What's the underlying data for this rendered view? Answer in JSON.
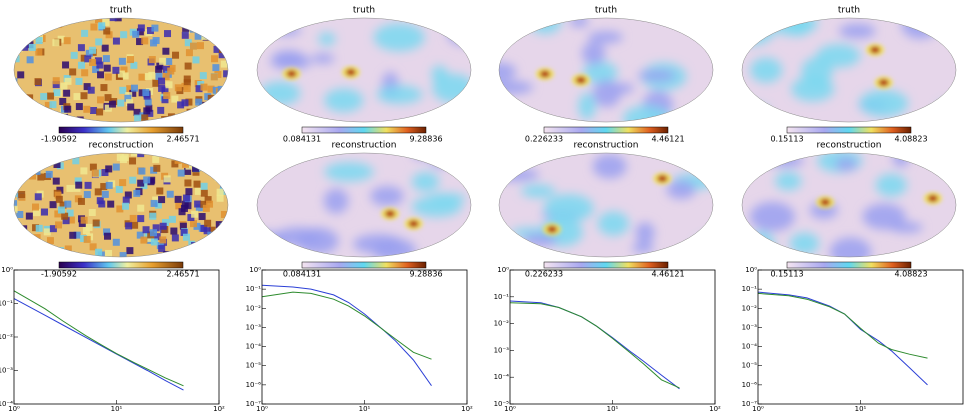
{
  "maps": [
    {
      "title": "truth",
      "colorbar": [
        -1.90592,
        2.46571
      ]
    },
    {
      "title": "truth",
      "colorbar": [
        0.084131,
        9.28836
      ]
    },
    {
      "title": "truth",
      "colorbar": [
        0.226233,
        4.46121
      ]
    },
    {
      "title": "truth",
      "colorbar": [
        0.15113,
        4.08823
      ]
    },
    {
      "title": "reconstruction",
      "colorbar": [
        -1.90592,
        2.46571
      ]
    },
    {
      "title": "reconstruction",
      "colorbar": [
        0.084131,
        9.28836
      ]
    },
    {
      "title": "reconstruction",
      "colorbar": [
        0.226233,
        4.46121
      ]
    },
    {
      "title": "reconstruction",
      "colorbar": [
        0.15113,
        4.08823
      ]
    }
  ],
  "chart_data": [
    {
      "type": "line",
      "log_x": true,
      "log_y": true,
      "x": [
        1,
        2,
        3,
        5,
        7,
        10,
        15,
        20,
        30,
        45
      ],
      "series": [
        {
          "color": "#2b3fd6",
          "values": [
            0.14,
            0.0446,
            0.0228,
            0.0098,
            0.0056,
            0.0031,
            0.0016,
            0.001,
            0.0005,
            0.00026
          ]
        },
        {
          "color": "#2e8b2e",
          "values": [
            0.24,
            0.07,
            0.03,
            0.011,
            0.006,
            0.0032,
            0.0017,
            0.0011,
            0.0006,
            0.00035
          ]
        }
      ],
      "xlim": [
        1,
        100
      ],
      "xticks": [
        {
          "value": 1,
          "label": "10⁰"
        },
        {
          "value": 10,
          "label": "10¹"
        },
        {
          "value": 100,
          "label": "10²"
        }
      ],
      "ylim": [
        0.0001,
        1
      ],
      "yticks": [
        {
          "value": 0.0001,
          "label": "10⁻⁴"
        },
        {
          "value": 0.001,
          "label": "10⁻³"
        },
        {
          "value": 0.01,
          "label": "10⁻²"
        },
        {
          "value": 0.1,
          "label": "10⁻¹"
        },
        {
          "value": 1,
          "label": "10⁰"
        }
      ]
    },
    {
      "type": "line",
      "log_x": true,
      "log_y": true,
      "x": [
        1,
        2,
        3,
        5,
        7,
        10,
        15,
        20,
        30,
        45
      ],
      "series": [
        {
          "color": "#2b3fd6",
          "values": [
            0.16,
            0.13,
            0.1,
            0.05,
            0.02,
            0.005,
            0.0008,
            0.0002,
            2e-05,
            9e-07
          ]
        },
        {
          "color": "#2e8b2e",
          "values": [
            0.04,
            0.07,
            0.06,
            0.03,
            0.013,
            0.004,
            0.0008,
            0.00025,
            5e-05,
            2.2e-05
          ]
        }
      ],
      "xlim": [
        1,
        100
      ],
      "xticks": [
        {
          "value": 1,
          "label": "10⁰"
        },
        {
          "value": 10,
          "label": "10¹"
        },
        {
          "value": 100,
          "label": "10²"
        }
      ],
      "ylim": [
        1e-07,
        1
      ],
      "yticks": [
        {
          "value": 1e-07,
          "label": "10⁻⁷"
        },
        {
          "value": 1e-06,
          "label": "10⁻⁶"
        },
        {
          "value": 1e-05,
          "label": "10⁻⁵"
        },
        {
          "value": 0.0001,
          "label": "10⁻⁴"
        },
        {
          "value": 0.001,
          "label": "10⁻³"
        },
        {
          "value": 0.01,
          "label": "10⁻²"
        },
        {
          "value": 0.1,
          "label": "10⁻¹"
        },
        {
          "value": 1,
          "label": "10⁰"
        }
      ]
    },
    {
      "type": "line",
      "log_x": true,
      "log_y": true,
      "x": [
        1,
        2,
        3,
        5,
        7,
        10,
        15,
        20,
        30,
        45
      ],
      "series": [
        {
          "color": "#2b3fd6",
          "values": [
            0.07,
            0.06,
            0.04,
            0.018,
            0.008,
            0.003,
            0.0009,
            0.0004,
            0.00012,
            3.7e-05
          ]
        },
        {
          "color": "#2e8b2e",
          "values": [
            0.06,
            0.055,
            0.04,
            0.018,
            0.008,
            0.0028,
            0.0008,
            0.00032,
            8e-05,
            4e-05
          ]
        }
      ],
      "xlim": [
        1,
        100
      ],
      "xticks": [
        {
          "value": 1,
          "label": "10⁰"
        },
        {
          "value": 10,
          "label": "10¹"
        },
        {
          "value": 100,
          "label": "10²"
        }
      ],
      "ylim": [
        1e-05,
        1
      ],
      "yticks": [
        {
          "value": 1e-05,
          "label": "10⁻⁵"
        },
        {
          "value": 0.0001,
          "label": "10⁻⁴"
        },
        {
          "value": 0.001,
          "label": "10⁻³"
        },
        {
          "value": 0.01,
          "label": "10⁻²"
        },
        {
          "value": 0.1,
          "label": "10⁻¹"
        },
        {
          "value": 1,
          "label": "10⁰"
        }
      ]
    },
    {
      "type": "line",
      "log_x": true,
      "log_y": true,
      "x": [
        1,
        2,
        3,
        5,
        7,
        10,
        15,
        20,
        30,
        45
      ],
      "series": [
        {
          "color": "#2b3fd6",
          "values": [
            0.07,
            0.05,
            0.035,
            0.013,
            0.005,
            0.0008,
            0.0002,
            6e-05,
            8e-06,
            1e-06
          ]
        },
        {
          "color": "#2e8b2e",
          "values": [
            0.06,
            0.045,
            0.03,
            0.012,
            0.005,
            0.0009,
            0.00015,
            7e-05,
            4e-05,
            2.5e-05
          ]
        }
      ],
      "xlim": [
        1,
        100
      ],
      "xticks": [
        {
          "value": 1,
          "label": "10⁰"
        },
        {
          "value": 10,
          "label": "10¹"
        }
      ],
      "ylim": [
        1e-07,
        1
      ],
      "yticks": [
        {
          "value": 1e-07,
          "label": "10⁻⁷"
        },
        {
          "value": 1e-06,
          "label": "10⁻⁶"
        },
        {
          "value": 1e-05,
          "label": "10⁻⁵"
        },
        {
          "value": 0.0001,
          "label": "10⁻⁴"
        },
        {
          "value": 0.001,
          "label": "10⁻³"
        },
        {
          "value": 0.01,
          "label": "10⁻²"
        },
        {
          "value": 0.1,
          "label": "10⁻¹"
        },
        {
          "value": 1,
          "label": "10⁰"
        }
      ]
    }
  ]
}
